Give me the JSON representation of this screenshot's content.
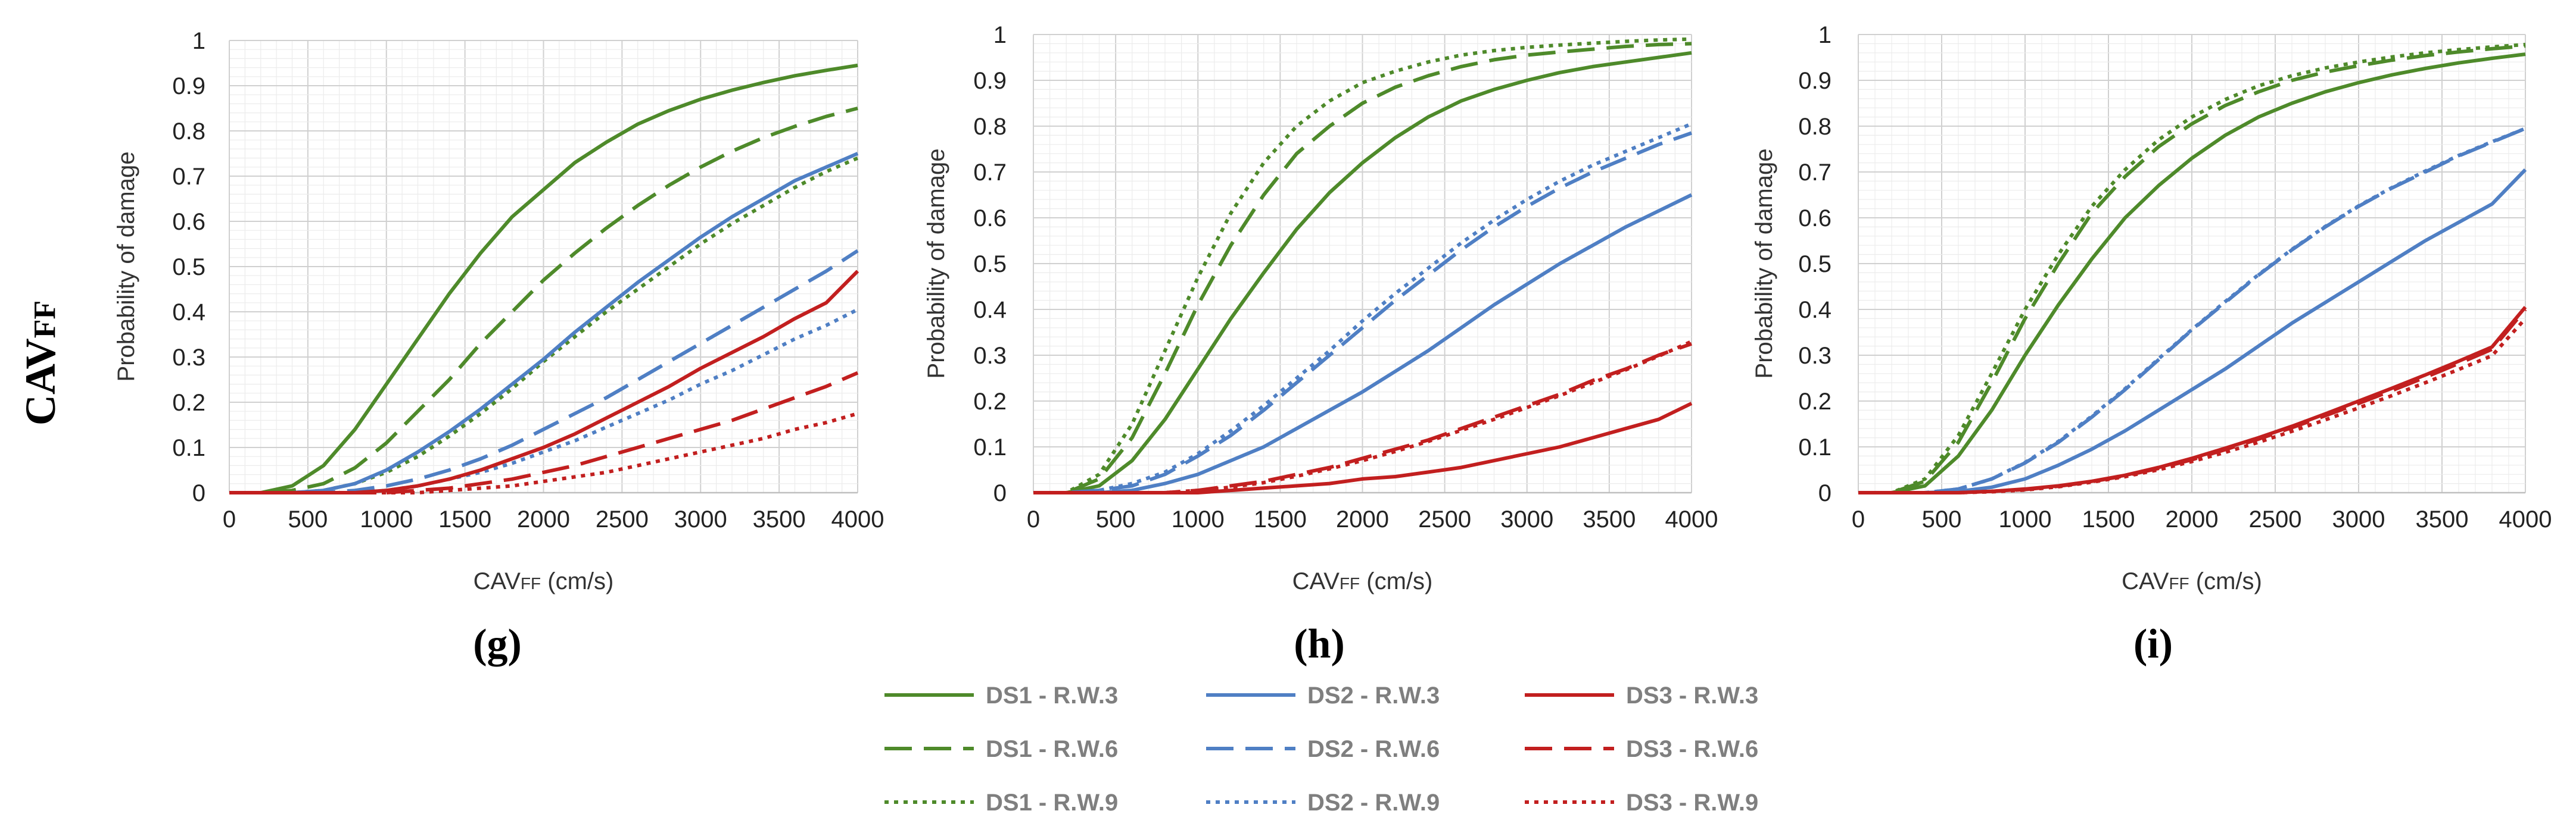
{
  "row_label": {
    "main": "CAV",
    "sub": "FF"
  },
  "chart_data": [
    {
      "type": "line",
      "panel_label": "(g)",
      "xlabel_main": "CAV",
      "xlabel_sub": "FF",
      "xlabel_rest": " (cm/s)",
      "ylabel": "Probability of damage",
      "xlim": [
        0,
        4000
      ],
      "ylim": [
        0,
        1
      ],
      "grid": true,
      "x_ticks": [
        "0",
        "500",
        "1000",
        "1500",
        "2000",
        "2500",
        "3000",
        "3500",
        "4000"
      ],
      "y_ticks": [
        "0",
        "0.1",
        "0.2",
        "0.3",
        "0.4",
        "0.5",
        "0.6",
        "0.7",
        "0.8",
        "0.9",
        "1"
      ],
      "x": [
        0,
        200,
        400,
        600,
        800,
        1000,
        1200,
        1400,
        1600,
        1800,
        2000,
        2200,
        2400,
        2600,
        2800,
        3000,
        3200,
        3400,
        3600,
        3800,
        4000
      ],
      "series": [
        {
          "name": "DS1 - R.W.3",
          "values": [
            0,
            0,
            0.015,
            0.06,
            0.14,
            0.24,
            0.34,
            0.44,
            0.53,
            0.61,
            0.67,
            0.73,
            0.775,
            0.815,
            0.845,
            0.87,
            0.89,
            0.907,
            0.922,
            0.934,
            0.945
          ]
        },
        {
          "name": "DS1 - R.W.6",
          "values": [
            0,
            0,
            0.005,
            0.02,
            0.055,
            0.11,
            0.18,
            0.25,
            0.33,
            0.4,
            0.47,
            0.53,
            0.585,
            0.635,
            0.68,
            0.72,
            0.755,
            0.785,
            0.81,
            0.832,
            0.85
          ]
        },
        {
          "name": "DS1 - R.W.9",
          "values": [
            0,
            0,
            0,
            0.005,
            0.02,
            0.045,
            0.08,
            0.125,
            0.175,
            0.23,
            0.29,
            0.345,
            0.4,
            0.45,
            0.5,
            0.55,
            0.595,
            0.635,
            0.675,
            0.71,
            0.74
          ]
        },
        {
          "name": "DS2 - R.W.3",
          "values": [
            0,
            0,
            0,
            0.005,
            0.02,
            0.05,
            0.09,
            0.135,
            0.185,
            0.24,
            0.295,
            0.355,
            0.41,
            0.465,
            0.515,
            0.565,
            0.61,
            0.65,
            0.69,
            0.72,
            0.75
          ]
        },
        {
          "name": "DS2 - R.W.6",
          "values": [
            0,
            0,
            0,
            0,
            0.005,
            0.015,
            0.03,
            0.05,
            0.075,
            0.105,
            0.14,
            0.175,
            0.21,
            0.25,
            0.29,
            0.33,
            0.37,
            0.41,
            0.45,
            0.49,
            0.535
          ]
        },
        {
          "name": "DS2 - R.W.9",
          "values": [
            0,
            0,
            0,
            0,
            0,
            0.005,
            0.015,
            0.03,
            0.045,
            0.065,
            0.09,
            0.115,
            0.145,
            0.175,
            0.205,
            0.24,
            0.27,
            0.305,
            0.34,
            0.37,
            0.405
          ]
        },
        {
          "name": "DS3 - R.W.3",
          "values": [
            0,
            0,
            0,
            0,
            0,
            0.005,
            0.015,
            0.03,
            0.05,
            0.075,
            0.1,
            0.13,
            0.165,
            0.2,
            0.235,
            0.275,
            0.31,
            0.345,
            0.385,
            0.42,
            0.49
          ]
        },
        {
          "name": "DS3 - R.W.6",
          "values": [
            0,
            0,
            0,
            0,
            0,
            0,
            0.005,
            0.01,
            0.02,
            0.03,
            0.045,
            0.06,
            0.08,
            0.1,
            0.12,
            0.14,
            0.16,
            0.185,
            0.21,
            0.235,
            0.265
          ]
        },
        {
          "name": "DS3 - R.W.9",
          "values": [
            0,
            0,
            0,
            0,
            0,
            0,
            0,
            0.005,
            0.01,
            0.015,
            0.025,
            0.035,
            0.045,
            0.06,
            0.075,
            0.09,
            0.105,
            0.12,
            0.14,
            0.155,
            0.175
          ]
        }
      ]
    },
    {
      "type": "line",
      "panel_label": "(h)",
      "xlabel_main": "CAV",
      "xlabel_sub": "FF",
      "xlabel_rest": " (cm/s)",
      "ylabel": "Probability of damage",
      "xlim": [
        0,
        4000
      ],
      "ylim": [
        0,
        1
      ],
      "grid": true,
      "x_ticks": [
        "0",
        "500",
        "1000",
        "1500",
        "2000",
        "2500",
        "3000",
        "3500",
        "4000"
      ],
      "y_ticks": [
        "0",
        "0.1",
        "0.2",
        "0.3",
        "0.4",
        "0.5",
        "0.6",
        "0.7",
        "0.8",
        "0.9",
        "1"
      ],
      "x": [
        0,
        200,
        400,
        600,
        800,
        1000,
        1200,
        1400,
        1600,
        1800,
        2000,
        2200,
        2400,
        2600,
        2800,
        3000,
        3200,
        3400,
        3600,
        3800,
        4000
      ],
      "series": [
        {
          "name": "DS1 - R.W.3",
          "values": [
            0,
            0,
            0.015,
            0.07,
            0.16,
            0.27,
            0.38,
            0.48,
            0.575,
            0.655,
            0.72,
            0.775,
            0.82,
            0.855,
            0.88,
            0.9,
            0.917,
            0.93,
            0.94,
            0.95,
            0.96
          ]
        },
        {
          "name": "DS1 - R.W.6",
          "values": [
            0,
            0,
            0.03,
            0.12,
            0.26,
            0.41,
            0.54,
            0.65,
            0.74,
            0.8,
            0.85,
            0.885,
            0.91,
            0.93,
            0.945,
            0.955,
            0.962,
            0.968,
            0.974,
            0.978,
            0.98
          ]
        },
        {
          "name": "DS1 - R.W.9",
          "values": [
            0,
            0,
            0.04,
            0.15,
            0.31,
            0.47,
            0.61,
            0.72,
            0.8,
            0.855,
            0.895,
            0.92,
            0.94,
            0.955,
            0.965,
            0.972,
            0.977,
            0.981,
            0.985,
            0.988,
            0.99
          ]
        },
        {
          "name": "DS2 - R.W.3",
          "values": [
            0,
            0,
            0,
            0.005,
            0.02,
            0.04,
            0.07,
            0.1,
            0.14,
            0.18,
            0.22,
            0.265,
            0.31,
            0.36,
            0.41,
            0.455,
            0.5,
            0.54,
            0.58,
            0.615,
            0.65
          ]
        },
        {
          "name": "DS2 - R.W.6",
          "values": [
            0,
            0,
            0.005,
            0.015,
            0.04,
            0.08,
            0.125,
            0.18,
            0.24,
            0.3,
            0.36,
            0.42,
            0.475,
            0.53,
            0.58,
            0.625,
            0.665,
            0.7,
            0.73,
            0.76,
            0.785
          ]
        },
        {
          "name": "DS2 - R.W.9",
          "values": [
            0,
            0,
            0.005,
            0.02,
            0.045,
            0.085,
            0.135,
            0.19,
            0.25,
            0.31,
            0.375,
            0.435,
            0.49,
            0.545,
            0.595,
            0.64,
            0.68,
            0.715,
            0.745,
            0.775,
            0.805
          ]
        },
        {
          "name": "DS3 - R.W.3",
          "values": [
            0,
            0,
            0,
            0,
            0,
            0,
            0.005,
            0.01,
            0.015,
            0.02,
            0.03,
            0.035,
            0.045,
            0.055,
            0.07,
            0.085,
            0.1,
            0.12,
            0.14,
            0.16,
            0.195
          ]
        },
        {
          "name": "DS3 - R.W.6",
          "values": [
            0,
            0,
            0,
            0,
            0,
            0.005,
            0.015,
            0.025,
            0.04,
            0.055,
            0.075,
            0.095,
            0.115,
            0.14,
            0.165,
            0.19,
            0.215,
            0.245,
            0.27,
            0.3,
            0.325
          ]
        },
        {
          "name": "DS3 - R.W.9",
          "values": [
            0,
            0,
            0,
            0,
            0,
            0.005,
            0.012,
            0.022,
            0.036,
            0.052,
            0.07,
            0.09,
            0.112,
            0.136,
            0.16,
            0.186,
            0.212,
            0.24,
            0.268,
            0.298,
            0.33
          ]
        }
      ]
    },
    {
      "type": "line",
      "panel_label": "(i)",
      "xlabel_main": "CAV",
      "xlabel_sub": "FF",
      "xlabel_rest": " (cm/s)",
      "ylabel": "Probability of damage",
      "xlim": [
        0,
        4000
      ],
      "ylim": [
        0,
        1
      ],
      "grid": true,
      "x_ticks": [
        "0",
        "500",
        "1000",
        "1500",
        "2000",
        "2500",
        "3000",
        "3500",
        "4000"
      ],
      "y_ticks": [
        "0",
        "0.1",
        "0.2",
        "0.3",
        "0.4",
        "0.5",
        "0.6",
        "0.7",
        "0.8",
        "0.9",
        "1"
      ],
      "x": [
        0,
        200,
        400,
        600,
        800,
        1000,
        1200,
        1400,
        1600,
        1800,
        2000,
        2200,
        2400,
        2600,
        2800,
        3000,
        3200,
        3400,
        3600,
        3800,
        4000
      ],
      "series": [
        {
          "name": "DS1 - R.W.3",
          "values": [
            0,
            0,
            0.015,
            0.08,
            0.18,
            0.3,
            0.41,
            0.51,
            0.6,
            0.67,
            0.73,
            0.78,
            0.82,
            0.85,
            0.875,
            0.895,
            0.912,
            0.926,
            0.938,
            0.948,
            0.957
          ]
        },
        {
          "name": "DS1 - R.W.6",
          "values": [
            0,
            0,
            0.025,
            0.11,
            0.24,
            0.38,
            0.5,
            0.61,
            0.69,
            0.755,
            0.805,
            0.845,
            0.875,
            0.9,
            0.918,
            0.932,
            0.944,
            0.954,
            0.962,
            0.969,
            0.975
          ]
        },
        {
          "name": "DS1 - R.W.9",
          "values": [
            0,
            0,
            0.03,
            0.125,
            0.26,
            0.4,
            0.52,
            0.625,
            0.705,
            0.77,
            0.82,
            0.858,
            0.888,
            0.91,
            0.927,
            0.94,
            0.951,
            0.96,
            0.967,
            0.973,
            0.978
          ]
        },
        {
          "name": "DS2 - R.W.3",
          "values": [
            0,
            0,
            0,
            0.003,
            0.012,
            0.03,
            0.06,
            0.095,
            0.135,
            0.18,
            0.225,
            0.27,
            0.32,
            0.37,
            0.415,
            0.46,
            0.505,
            0.55,
            0.59,
            0.63,
            0.705
          ]
        },
        {
          "name": "DS2 - R.W.6",
          "values": [
            0,
            0,
            0,
            0.008,
            0.03,
            0.065,
            0.11,
            0.165,
            0.225,
            0.29,
            0.355,
            0.415,
            0.475,
            0.53,
            0.58,
            0.625,
            0.665,
            0.7,
            0.735,
            0.765,
            0.795
          ]
        },
        {
          "name": "DS2 - R.W.9",
          "values": [
            0,
            0,
            0,
            0.008,
            0.03,
            0.066,
            0.112,
            0.167,
            0.227,
            0.292,
            0.356,
            0.417,
            0.476,
            0.531,
            0.581,
            0.626,
            0.666,
            0.702,
            0.736,
            0.766,
            0.795
          ]
        },
        {
          "name": "DS3 - R.W.3",
          "values": [
            0,
            0,
            0,
            0,
            0.003,
            0.008,
            0.015,
            0.025,
            0.038,
            0.055,
            0.075,
            0.097,
            0.12,
            0.145,
            0.172,
            0.2,
            0.228,
            0.257,
            0.287,
            0.318,
            0.405
          ]
        },
        {
          "name": "DS3 - R.W.6",
          "values": [
            0,
            0,
            0,
            0,
            0.003,
            0.007,
            0.014,
            0.024,
            0.037,
            0.053,
            0.072,
            0.094,
            0.117,
            0.142,
            0.168,
            0.195,
            0.223,
            0.252,
            0.282,
            0.313,
            0.4
          ]
        },
        {
          "name": "DS3 - R.W.9",
          "values": [
            0,
            0,
            0,
            0,
            0.002,
            0.006,
            0.013,
            0.023,
            0.035,
            0.05,
            0.068,
            0.088,
            0.11,
            0.134,
            0.159,
            0.185,
            0.212,
            0.24,
            0.269,
            0.299,
            0.38
          ]
        }
      ]
    }
  ],
  "legend": {
    "entries": [
      {
        "label": "DS1 - R.W.3",
        "color": "#4e8a2a",
        "dash": "solid"
      },
      {
        "label": "DS2 - R.W.3",
        "color": "#4f7fc4",
        "dash": "solid"
      },
      {
        "label": "DS3 - R.W.3",
        "color": "#c21f1f",
        "dash": "solid"
      },
      {
        "label": "DS1 - R.W.6",
        "color": "#4e8a2a",
        "dash": "dashed"
      },
      {
        "label": "DS2 - R.W.6",
        "color": "#4f7fc4",
        "dash": "dashed"
      },
      {
        "label": "DS3 - R.W.6",
        "color": "#c21f1f",
        "dash": "dashed"
      },
      {
        "label": "DS1 - R.W.9",
        "color": "#4e8a2a",
        "dash": "dotted"
      },
      {
        "label": "DS2 - R.W.9",
        "color": "#4f7fc4",
        "dash": "dotted"
      },
      {
        "label": "DS3 - R.W.9",
        "color": "#c21f1f",
        "dash": "dotted"
      }
    ]
  },
  "colors": {
    "DS1": "#4e8a2a",
    "DS2": "#4f7fc4",
    "DS3": "#c21f1f",
    "grid": "#d9d9d9",
    "axis": "#bfbfbf"
  }
}
